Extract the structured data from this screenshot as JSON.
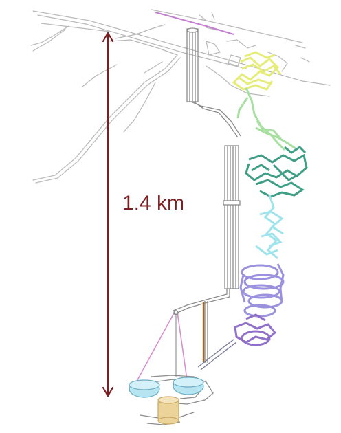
{
  "depth": {
    "label": "1.4 km",
    "color": "#7b1f22"
  },
  "colors": {
    "surface": "#b9b9b9",
    "shaft": "#8c8c8c",
    "ramp_top": "#e6ec7a",
    "ramp_upper": "#a7e0a0",
    "ramp_mid": "#3f9f86",
    "ramp_lower": "#9fe3ec",
    "ramp_loops": "#9a92de",
    "ramp_bottom": "#9070c8",
    "chamber_pink": "#d88ed0",
    "hall_blue": "#b6e4f0",
    "hall_gold": "#ecd39a",
    "brown_shaft": "#9a6a2a"
  }
}
